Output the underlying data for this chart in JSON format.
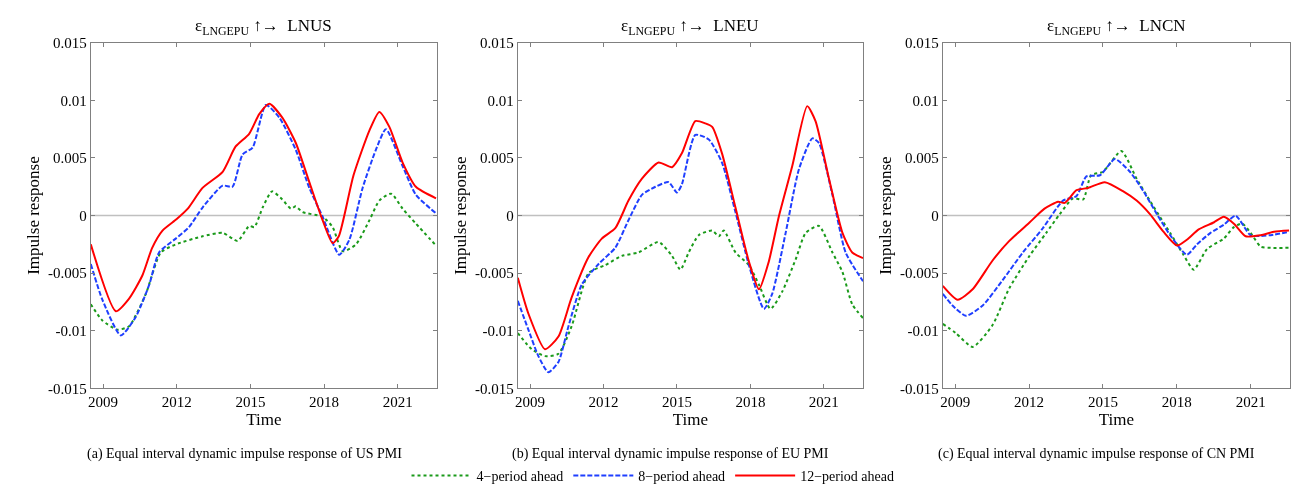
{
  "chart_data": [
    {
      "type": "line",
      "title": "ε$_{LNGEPU}$ ↑→  LNUS",
      "xlabel": "Time",
      "ylabel": "Impulse response",
      "xlim": [
        2008.5,
        2022.6
      ],
      "xticks": [
        2009,
        2012,
        2015,
        2018,
        2021
      ],
      "ylim": [
        -0.015,
        0.015
      ],
      "yticks": [
        -0.015,
        -0.01,
        -0.005,
        0,
        0.005,
        0.01,
        0.015
      ],
      "grid": false,
      "legend": "bottom",
      "marker": "none",
      "ref_lines": [
        {
          "axis": "y",
          "value": 0,
          "color": "#c0c0c0"
        }
      ],
      "annotations": [
        "(a) Equal interval dynamic impulse response of US PMI"
      ],
      "series": [
        {
          "name": "4−period ahead",
          "color": "#1a9a1a",
          "line_style": "dotted",
          "x": [
            2008.5,
            2008.97,
            2009.58,
            2010.06,
            2010.74,
            2011.35,
            2011.96,
            2013.05,
            2013.87,
            2014.48,
            2014.95,
            2015.16,
            2015.5,
            2015.88,
            2016.3,
            2016.65,
            2016.85,
            2017.12,
            2017.94,
            2018.35,
            2018.76,
            2019.3,
            2019.85,
            2020.25,
            2020.73,
            2021.2,
            2021.74,
            2022.56
          ],
          "values": [
            -0.0077,
            -0.0091,
            -0.0099,
            -0.0096,
            -0.0068,
            -0.0032,
            -0.0025,
            -0.0018,
            -0.0015,
            -0.0022,
            -0.0009,
            -0.001,
            0.0007,
            0.0021,
            0.0014,
            0.0006,
            0.0008,
            0.0003,
            -0.0001,
            -0.001,
            -0.0031,
            -0.0025,
            -0.0004,
            0.0013,
            0.0019,
            0.0006,
            -0.0007,
            -0.0026
          ]
        },
        {
          "name": "8−period ahead",
          "color": "#1f3fff",
          "line_style": "dashed",
          "x": [
            2008.5,
            2008.97,
            2009.72,
            2010.33,
            2010.88,
            2011.28,
            2011.96,
            2012.5,
            2013.05,
            2013.87,
            2014.27,
            2014.68,
            2015.09,
            2015.63,
            2016.18,
            2016.85,
            2017.4,
            2017.94,
            2018.62,
            2019.03,
            2019.57,
            2020.11,
            2020.52,
            2021.2,
            2021.74,
            2022.56
          ],
          "values": [
            -0.0042,
            -0.0073,
            -0.0104,
            -0.0088,
            -0.006,
            -0.0032,
            -0.002,
            -0.001,
            0.0007,
            0.0026,
            0.0025,
            0.0053,
            0.0059,
            0.0096,
            0.0085,
            0.0057,
            0.0024,
            -0.0001,
            -0.0034,
            -0.0021,
            0.0024,
            0.0057,
            0.0075,
            0.0043,
            0.0018,
            0.0002
          ]
        },
        {
          "name": "12−period ahead",
          "color": "#ff0000",
          "line_style": "solid",
          "x": [
            2008.5,
            2009.52,
            2010.06,
            2010.6,
            2011.0,
            2011.42,
            2012.0,
            2012.45,
            2013.05,
            2013.87,
            2014.4,
            2014.95,
            2015.36,
            2015.77,
            2016.3,
            2016.85,
            2017.4,
            2017.94,
            2018.35,
            2018.6,
            2019.2,
            2019.85,
            2020.25,
            2020.66,
            2021.2,
            2021.74,
            2022.56
          ],
          "values": [
            -0.0025,
            -0.0083,
            -0.0072,
            -0.0052,
            -0.0028,
            -0.0013,
            -0.0003,
            0.0006,
            0.0024,
            0.0038,
            0.006,
            0.0071,
            0.0088,
            0.0097,
            0.0085,
            0.0063,
            0.0029,
            -0.0004,
            -0.0024,
            -0.0018,
            0.0035,
            0.0074,
            0.009,
            0.0077,
            0.0046,
            0.0025,
            0.0015
          ]
        }
      ]
    },
    {
      "type": "line",
      "title": "ε$_{LNGEPU}$ ↑→  LNEU",
      "xlabel": "Time",
      "ylabel": "Impulse response",
      "xlim": [
        2008.5,
        2022.6
      ],
      "xticks": [
        2009,
        2012,
        2015,
        2018,
        2021
      ],
      "ylim": [
        -0.015,
        0.015
      ],
      "yticks": [
        -0.015,
        -0.01,
        -0.005,
        0,
        0.005,
        0.01,
        0.015
      ],
      "grid": false,
      "marker": "none",
      "ref_lines": [
        {
          "axis": "y",
          "value": 0,
          "color": "#c0c0c0"
        }
      ],
      "annotations": [
        "(b) Equal interval dynamic impulse response of EU PMI"
      ],
      "series": [
        {
          "color": "#1a9a1a",
          "line_style": "dotted",
          "x": [
            2008.5,
            2009.07,
            2009.61,
            2010.16,
            2010.7,
            2011.39,
            2012.07,
            2012.75,
            2013.43,
            2014.25,
            2014.8,
            2015.14,
            2015.48,
            2015.89,
            2016.44,
            2016.71,
            2016.91,
            2017.39,
            2017.94,
            2018.35,
            2018.82,
            2019.3,
            2019.85,
            2020.26,
            2020.8,
            2021.35,
            2021.76,
            2022.16,
            2022.6
          ],
          "values": [
            -0.0102,
            -0.0116,
            -0.0122,
            -0.012,
            -0.0096,
            -0.005,
            -0.0043,
            -0.0035,
            -0.0032,
            -0.0023,
            -0.0035,
            -0.0047,
            -0.0032,
            -0.0017,
            -0.0013,
            -0.0018,
            -0.0013,
            -0.0032,
            -0.0043,
            -0.006,
            -0.0081,
            -0.0066,
            -0.0038,
            -0.0015,
            -0.0009,
            -0.0032,
            -0.0049,
            -0.0077,
            -0.0089
          ]
        },
        {
          "color": "#1f3fff",
          "line_style": "dashed",
          "x": [
            2008.5,
            2008.93,
            2009.34,
            2009.75,
            2010.16,
            2010.57,
            2011.11,
            2011.8,
            2012.48,
            2013.02,
            2013.57,
            2014.12,
            2014.66,
            2015.0,
            2015.2,
            2015.75,
            2016.3,
            2016.84,
            2017.39,
            2017.94,
            2018.55,
            2018.89,
            2019.44,
            2019.98,
            2020.53,
            2020.8,
            2021.35,
            2021.89,
            2022.6
          ],
          "values": [
            -0.0074,
            -0.0099,
            -0.0122,
            -0.0136,
            -0.0127,
            -0.0096,
            -0.006,
            -0.0042,
            -0.0028,
            -0.0004,
            0.0018,
            0.0025,
            0.0029,
            0.002,
            0.0027,
            0.007,
            0.0066,
            0.0046,
            0.0003,
            -0.0043,
            -0.0081,
            -0.0068,
            -0.0015,
            0.004,
            0.0067,
            0.0063,
            0.0018,
            -0.0032,
            -0.0057
          ]
        },
        {
          "color": "#ff0000",
          "line_style": "solid",
          "x": [
            2008.5,
            2008.93,
            2009.61,
            2010.16,
            2010.7,
            2011.39,
            2011.93,
            2012.48,
            2013.02,
            2013.57,
            2014.25,
            2014.8,
            2015.2,
            2015.75,
            2016.16,
            2016.44,
            2016.84,
            2017.39,
            2017.94,
            2018.35,
            2018.75,
            2019.16,
            2019.71,
            2020.32,
            2020.66,
            2021.21,
            2021.76,
            2022.16,
            2022.6
          ],
          "values": [
            -0.0054,
            -0.0085,
            -0.0116,
            -0.0105,
            -0.0071,
            -0.0036,
            -0.002,
            -0.0011,
            0.0013,
            0.0032,
            0.0046,
            0.0042,
            0.0054,
            0.0082,
            0.008,
            0.0077,
            0.0054,
            0.0007,
            -0.004,
            -0.0064,
            -0.004,
            -0.0001,
            0.0043,
            0.0095,
            0.0082,
            0.0032,
            -0.0015,
            -0.0032,
            -0.0037
          ]
        }
      ]
    },
    {
      "type": "line",
      "title": "ε$_{LNGEPU}$ ↑→  LNCN",
      "xlabel": "Time",
      "ylabel": "Impulse response",
      "xlim": [
        2008.5,
        2022.6
      ],
      "xticks": [
        2009,
        2012,
        2015,
        2018,
        2021
      ],
      "ylim": [
        -0.015,
        0.015
      ],
      "yticks": [
        -0.015,
        -0.01,
        -0.005,
        0,
        0.005,
        0.01,
        0.015
      ],
      "grid": false,
      "marker": "none",
      "ref_lines": [
        {
          "axis": "y",
          "value": 0,
          "color": "#c0c0c0"
        }
      ],
      "annotations": [
        "(c) Equal interval dynamic impulse response of CN PMI"
      ],
      "series": [
        {
          "color": "#1a9a1a",
          "line_style": "dotted",
          "x": [
            2008.5,
            2009.03,
            2009.71,
            2010.52,
            2011.2,
            2012.02,
            2012.7,
            2013.24,
            2013.79,
            2014.2,
            2014.52,
            2015.0,
            2015.75,
            2016.37,
            2017.05,
            2017.73,
            2018.27,
            2018.69,
            2019.23,
            2019.91,
            2020.32,
            2020.66,
            2021.0,
            2021.41,
            2021.82,
            2022.56
          ],
          "values": [
            -0.0094,
            -0.0102,
            -0.0114,
            -0.0095,
            -0.0063,
            -0.0035,
            -0.0015,
            0.0001,
            0.0015,
            0.0014,
            0.0035,
            0.0038,
            0.0056,
            0.0032,
            0.0008,
            -0.0015,
            -0.0034,
            -0.0047,
            -0.0029,
            -0.002,
            -0.001,
            -0.0007,
            -0.0015,
            -0.0027,
            -0.0028,
            -0.0028
          ]
        },
        {
          "color": "#1f3fff",
          "line_style": "dashed",
          "x": [
            2008.5,
            2008.89,
            2009.44,
            2010.12,
            2010.93,
            2011.75,
            2012.56,
            2013.38,
            2013.93,
            2014.33,
            2014.88,
            2015.49,
            2016.1,
            2016.65,
            2017.2,
            2017.73,
            2018.41,
            2018.82,
            2019.37,
            2019.91,
            2020.39,
            2021.0,
            2021.82,
            2022.56
          ],
          "values": [
            -0.0068,
            -0.0078,
            -0.0087,
            -0.0078,
            -0.0056,
            -0.0032,
            -0.0011,
            0.0013,
            0.0017,
            0.0034,
            0.0035,
            0.0049,
            0.0038,
            0.0021,
            0.0001,
            -0.0017,
            -0.0034,
            -0.0025,
            -0.0015,
            -0.0008,
            0,
            -0.0017,
            -0.0017,
            -0.0014
          ]
        },
        {
          "color": "#ff0000",
          "line_style": "solid",
          "x": [
            2008.5,
            2009.1,
            2009.71,
            2010.52,
            2011.2,
            2012.02,
            2012.63,
            2013.18,
            2013.45,
            2013.93,
            2014.4,
            2015.08,
            2015.83,
            2016.37,
            2016.92,
            2017.46,
            2018.01,
            2018.41,
            2018.89,
            2019.5,
            2019.91,
            2020.32,
            2020.8,
            2021.41,
            2021.95,
            2022.56
          ],
          "values": [
            -0.0061,
            -0.0073,
            -0.0064,
            -0.0039,
            -0.0022,
            -0.0006,
            0.0006,
            0.0012,
            0.0011,
            0.0022,
            0.0024,
            0.0029,
            0.0021,
            0.0013,
            0.0001,
            -0.0014,
            -0.0026,
            -0.0021,
            -0.0012,
            -0.0006,
            -0.0001,
            -0.0007,
            -0.0018,
            -0.0017,
            -0.0014,
            -0.0013
          ]
        }
      ]
    }
  ]
}
